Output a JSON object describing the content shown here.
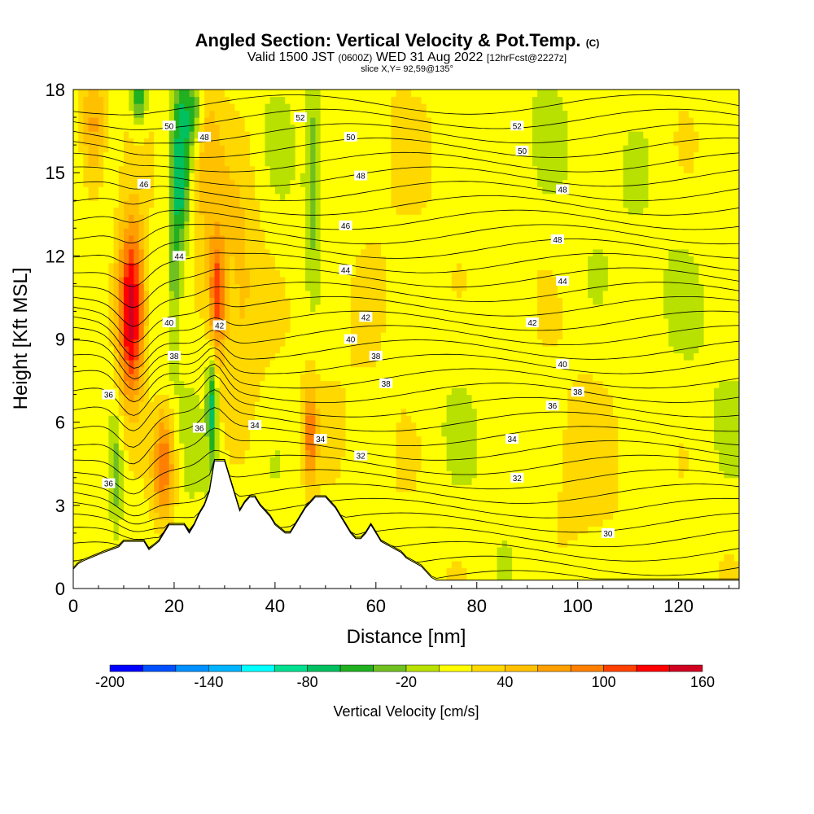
{
  "chart_data": {
    "type": "heatmap",
    "title": "Angled Section: Vertical Velocity & Pot.Temp.",
    "title_mark": "(C)",
    "subtitle_main": "Valid 1500 JST",
    "subtitle_z": "(0600Z)",
    "subtitle_date": "WED 31 Aug 2022",
    "subtitle_fcst": "[12hrFcst@2227z]",
    "slice_label": "slice X,Y= 92,59@135°",
    "xlabel": "Distance [nm]",
    "ylabel": "Height [Kft MSL]",
    "xlim": [
      0,
      132
    ],
    "ylim": [
      0,
      18
    ],
    "x_ticks": [
      "0",
      "20",
      "40",
      "60",
      "80",
      "100",
      "120"
    ],
    "x_tick_values": [
      0,
      20,
      40,
      60,
      80,
      100,
      120
    ],
    "y_ticks": [
      "0",
      "3",
      "6",
      "9",
      "12",
      "15",
      "18"
    ],
    "y_tick_values": [
      0,
      3,
      6,
      9,
      12,
      15,
      18
    ],
    "colorbar": {
      "label": "Vertical Velocity [cm/s]",
      "min": -200,
      "max": 160,
      "step": 20,
      "tick_labels": [
        "-200",
        "-140",
        "-80",
        "-20",
        "40",
        "100",
        "160"
      ],
      "tick_values": [
        -200,
        -140,
        -80,
        -20,
        40,
        100,
        160
      ],
      "colors": [
        "#0000ff",
        "#0050ff",
        "#0090ff",
        "#00b4ff",
        "#00ffff",
        "#00e090",
        "#00c060",
        "#20b020",
        "#70c020",
        "#b8e000",
        "#ffff00",
        "#ffd800",
        "#ffc000",
        "#ffa000",
        "#ff8000",
        "#ff4000",
        "#ff0000",
        "#d00020",
        "#a00050",
        "#800070",
        "#500080"
      ]
    },
    "terrain_profile": {
      "x": [
        0,
        1,
        2,
        6,
        9,
        10,
        14,
        15,
        17,
        18,
        19,
        22,
        23,
        24,
        25,
        26,
        27,
        28,
        29,
        30,
        31,
        32,
        33,
        34,
        35,
        36,
        37,
        38,
        39,
        40,
        42,
        43,
        44,
        45,
        46,
        47,
        48,
        49,
        50,
        51,
        52,
        53,
        54,
        55,
        56,
        57,
        58,
        59,
        60,
        61,
        62,
        63,
        64,
        65,
        66,
        67,
        68,
        69,
        70,
        71,
        72,
        132
      ],
      "y": [
        0.7,
        0.9,
        1.0,
        1.3,
        1.5,
        1.7,
        1.7,
        1.4,
        1.7,
        2.0,
        2.3,
        2.3,
        2.0,
        2.3,
        2.7,
        3.0,
        3.5,
        4.6,
        4.6,
        4.6,
        4.0,
        3.4,
        2.8,
        3.1,
        3.3,
        3.3,
        3.0,
        2.8,
        2.6,
        2.3,
        2.0,
        2.0,
        2.3,
        2.6,
        2.9,
        3.1,
        3.3,
        3.3,
        3.3,
        3.1,
        2.9,
        2.6,
        2.3,
        2.0,
        1.8,
        1.8,
        2.0,
        2.3,
        2.0,
        1.7,
        1.6,
        1.5,
        1.4,
        1.3,
        1.1,
        1.0,
        0.9,
        0.8,
        0.6,
        0.4,
        0.3,
        0.3
      ]
    },
    "updrafts": [
      {
        "x": 11.5,
        "y": 10.0,
        "sx": 1.9,
        "sy": 2.2,
        "value": 160
      },
      {
        "x": 18.0,
        "y": 4.5,
        "sx": 1.6,
        "sy": 1.4,
        "value": 95
      },
      {
        "x": 4.0,
        "y": 16.5,
        "sx": 1.6,
        "sy": 1.6,
        "value": 60
      },
      {
        "x": 28.5,
        "y": 10.5,
        "sx": 1.1,
        "sy": 1.6,
        "value": 95
      },
      {
        "x": 47.0,
        "y": 5.5,
        "sx": 0.9,
        "sy": 1.2,
        "value": 80
      },
      {
        "x": 33.0,
        "y": 11.0,
        "sx": 3.0,
        "sy": 4.0,
        "value": 35
      },
      {
        "x": 60.0,
        "y": 11.0,
        "sx": 8.0,
        "sy": 5.0,
        "value": 15
      },
      {
        "x": 100.0,
        "y": 3.5,
        "sx": 6.0,
        "sy": 2.5,
        "value": 22
      },
      {
        "x": 26.0,
        "y": 16.0,
        "sx": 2.5,
        "sy": 2.5,
        "value": 45
      }
    ],
    "downdrafts": [
      {
        "x": 21.5,
        "y": 15.5,
        "sx": 1.3,
        "sy": 2.5,
        "value": -85
      },
      {
        "x": 24.0,
        "y": 17.2,
        "sx": 1.2,
        "sy": 1.0,
        "value": -60
      },
      {
        "x": 13.0,
        "y": 17.8,
        "sx": 1.0,
        "sy": 0.8,
        "value": -70
      },
      {
        "x": 27.5,
        "y": 6.5,
        "sx": 0.7,
        "sy": 1.5,
        "value": -80
      },
      {
        "x": 47.5,
        "y": 15.0,
        "sx": 1.0,
        "sy": 2.5,
        "value": -45
      },
      {
        "x": 20.0,
        "y": 12.0,
        "sx": 0.9,
        "sy": 2.5,
        "value": -40
      },
      {
        "x": 8.5,
        "y": 4.0,
        "sx": 0.9,
        "sy": 1.6,
        "value": -40
      }
    ],
    "theta_labels": [
      {
        "text": "52",
        "x": 45,
        "y": 17.0
      },
      {
        "text": "52",
        "x": 88,
        "y": 16.7
      },
      {
        "text": "50",
        "x": 19,
        "y": 16.7
      },
      {
        "text": "50",
        "x": 55,
        "y": 16.3
      },
      {
        "text": "50",
        "x": 89,
        "y": 15.8
      },
      {
        "text": "48",
        "x": 26,
        "y": 16.3
      },
      {
        "text": "48",
        "x": 57,
        "y": 14.9
      },
      {
        "text": "48",
        "x": 97,
        "y": 14.4
      },
      {
        "text": "48",
        "x": 96,
        "y": 12.6
      },
      {
        "text": "46",
        "x": 14,
        "y": 14.6
      },
      {
        "text": "46",
        "x": 54,
        "y": 13.1
      },
      {
        "text": "44",
        "x": 21,
        "y": 12.0
      },
      {
        "text": "44",
        "x": 54,
        "y": 11.5
      },
      {
        "text": "44",
        "x": 97,
        "y": 11.1
      },
      {
        "text": "42",
        "x": 58,
        "y": 9.8
      },
      {
        "text": "42",
        "x": 91,
        "y": 9.6
      },
      {
        "text": "42",
        "x": 29,
        "y": 9.5
      },
      {
        "text": "40",
        "x": 19,
        "y": 9.6
      },
      {
        "text": "40",
        "x": 55,
        "y": 9.0
      },
      {
        "text": "40",
        "x": 97,
        "y": 8.1
      },
      {
        "text": "38",
        "x": 20,
        "y": 8.4
      },
      {
        "text": "38",
        "x": 60,
        "y": 8.4
      },
      {
        "text": "38",
        "x": 62,
        "y": 7.4
      },
      {
        "text": "38",
        "x": 100,
        "y": 7.1
      },
      {
        "text": "36",
        "x": 95,
        "y": 6.6
      },
      {
        "text": "36",
        "x": 25,
        "y": 5.8
      },
      {
        "text": "36",
        "x": 7,
        "y": 7.0
      },
      {
        "text": "36",
        "x": 7,
        "y": 3.8
      },
      {
        "text": "34",
        "x": 36,
        "y": 5.9
      },
      {
        "text": "34",
        "x": 49,
        "y": 5.4
      },
      {
        "text": "34",
        "x": 87,
        "y": 5.4
      },
      {
        "text": "32",
        "x": 57,
        "y": 4.8
      },
      {
        "text": "32",
        "x": 88,
        "y": 4.0
      },
      {
        "text": "30",
        "x": 106,
        "y": 2.0
      }
    ]
  }
}
